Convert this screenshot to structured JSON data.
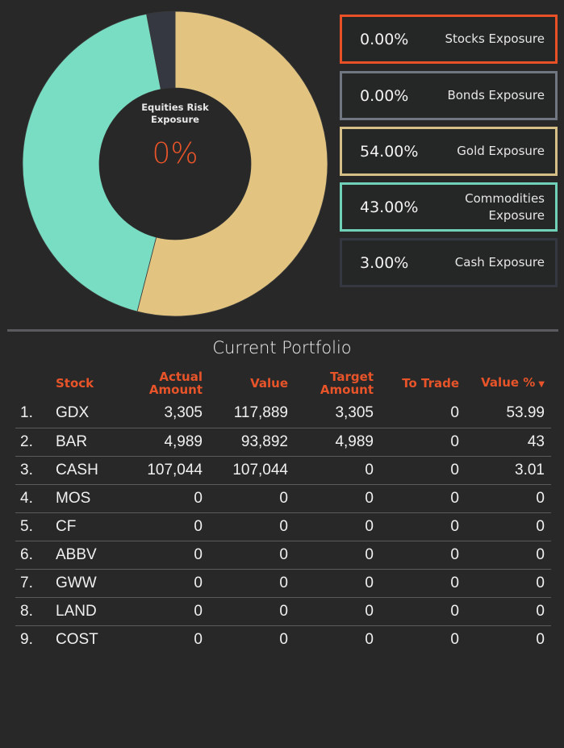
{
  "donut": {
    "center_title": "Equities Risk Exposure",
    "center_value": "0%",
    "colors": {
      "gold": "#e2c480",
      "commodities": "#78ddc3",
      "cash": "#363841",
      "separator": "#3a3a3a"
    }
  },
  "exposures": [
    {
      "percent": "0.00%",
      "label": "Stocks Exposure",
      "border": "#e85028"
    },
    {
      "percent": "0.00%",
      "label": "Bonds Exposure",
      "border": "#707780"
    },
    {
      "percent": "54.00%",
      "label": "Gold Exposure",
      "border": "#d6bf86"
    },
    {
      "percent": "43.00%",
      "label": "Commodities Exposure",
      "border": "#6fd2b8"
    },
    {
      "percent": "3.00%",
      "label": "Cash Exposure",
      "border": "#363841"
    }
  ],
  "table": {
    "title": "Current Portfolio",
    "headers": {
      "stock": "Stock",
      "actual": "Actual Amount",
      "value": "Value",
      "target": "Target Amount",
      "trade": "To Trade",
      "valpct": "Value %",
      "sort_icon": "▼"
    },
    "rows": [
      {
        "idx": "1.",
        "stock": "GDX",
        "actual": "3,305",
        "value": "117,889",
        "target": "3,305",
        "trade": "0",
        "valpct": "53.99"
      },
      {
        "idx": "2.",
        "stock": "BAR",
        "actual": "4,989",
        "value": "93,892",
        "target": "4,989",
        "trade": "0",
        "valpct": "43"
      },
      {
        "idx": "3.",
        "stock": "CASH",
        "actual": "107,044",
        "value": "107,044",
        "target": "0",
        "trade": "0",
        "valpct": "3.01"
      },
      {
        "idx": "4.",
        "stock": "MOS",
        "actual": "0",
        "value": "0",
        "target": "0",
        "trade": "0",
        "valpct": "0"
      },
      {
        "idx": "5.",
        "stock": "CF",
        "actual": "0",
        "value": "0",
        "target": "0",
        "trade": "0",
        "valpct": "0"
      },
      {
        "idx": "6.",
        "stock": "ABBV",
        "actual": "0",
        "value": "0",
        "target": "0",
        "trade": "0",
        "valpct": "0"
      },
      {
        "idx": "7.",
        "stock": "GWW",
        "actual": "0",
        "value": "0",
        "target": "0",
        "trade": "0",
        "valpct": "0"
      },
      {
        "idx": "8.",
        "stock": "LAND",
        "actual": "0",
        "value": "0",
        "target": "0",
        "trade": "0",
        "valpct": "0"
      },
      {
        "idx": "9.",
        "stock": "COST",
        "actual": "0",
        "value": "0",
        "target": "0",
        "trade": "0",
        "valpct": "0"
      }
    ]
  },
  "chart_data": {
    "type": "pie",
    "title": "Equities Risk Exposure",
    "center_value": "0%",
    "categories": [
      "Gold",
      "Commodities",
      "Cash"
    ],
    "values": [
      54.0,
      43.0,
      3.0
    ],
    "start_angle_deg": 0,
    "direction": "clockwise"
  }
}
